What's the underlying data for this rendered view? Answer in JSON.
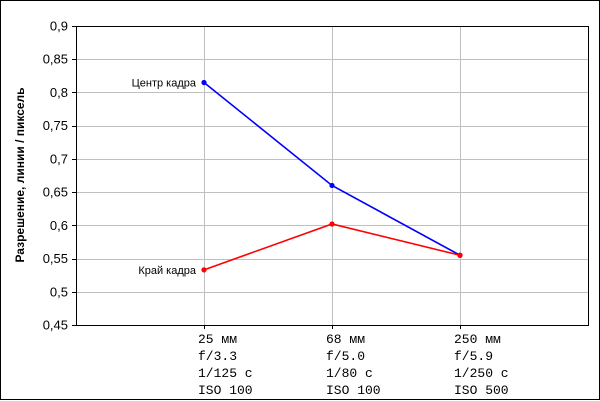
{
  "chart_data": {
    "type": "line",
    "ylabel": "Разрешение, линии / пиксель",
    "ylim": [
      0.45,
      0.9
    ],
    "yticks": [
      0.45,
      0.5,
      0.55,
      0.6,
      0.65,
      0.7,
      0.75,
      0.8,
      0.85,
      0.9
    ],
    "ytick_labels": [
      "0,45",
      "0,5",
      "0,55",
      "0,6",
      "0,65",
      "0,7",
      "0,75",
      "0,8",
      "0,85",
      "0,9"
    ],
    "categories": [
      [
        "25 мм",
        "f/3.3",
        "1/125 с",
        "ISO 100"
      ],
      [
        "68 мм",
        "f/5.0",
        "1/80 с",
        "ISO 100"
      ],
      [
        "250 мм",
        "f/5.9",
        "1/250 с",
        "ISO 500"
      ]
    ],
    "grid": true,
    "series": [
      {
        "name": "Центр кадра",
        "color": "#0000ff",
        "values": [
          0.815,
          0.66,
          0.555
        ]
      },
      {
        "name": "Край кадра",
        "color": "#ff0000",
        "values": [
          0.533,
          0.602,
          0.555
        ]
      }
    ]
  }
}
